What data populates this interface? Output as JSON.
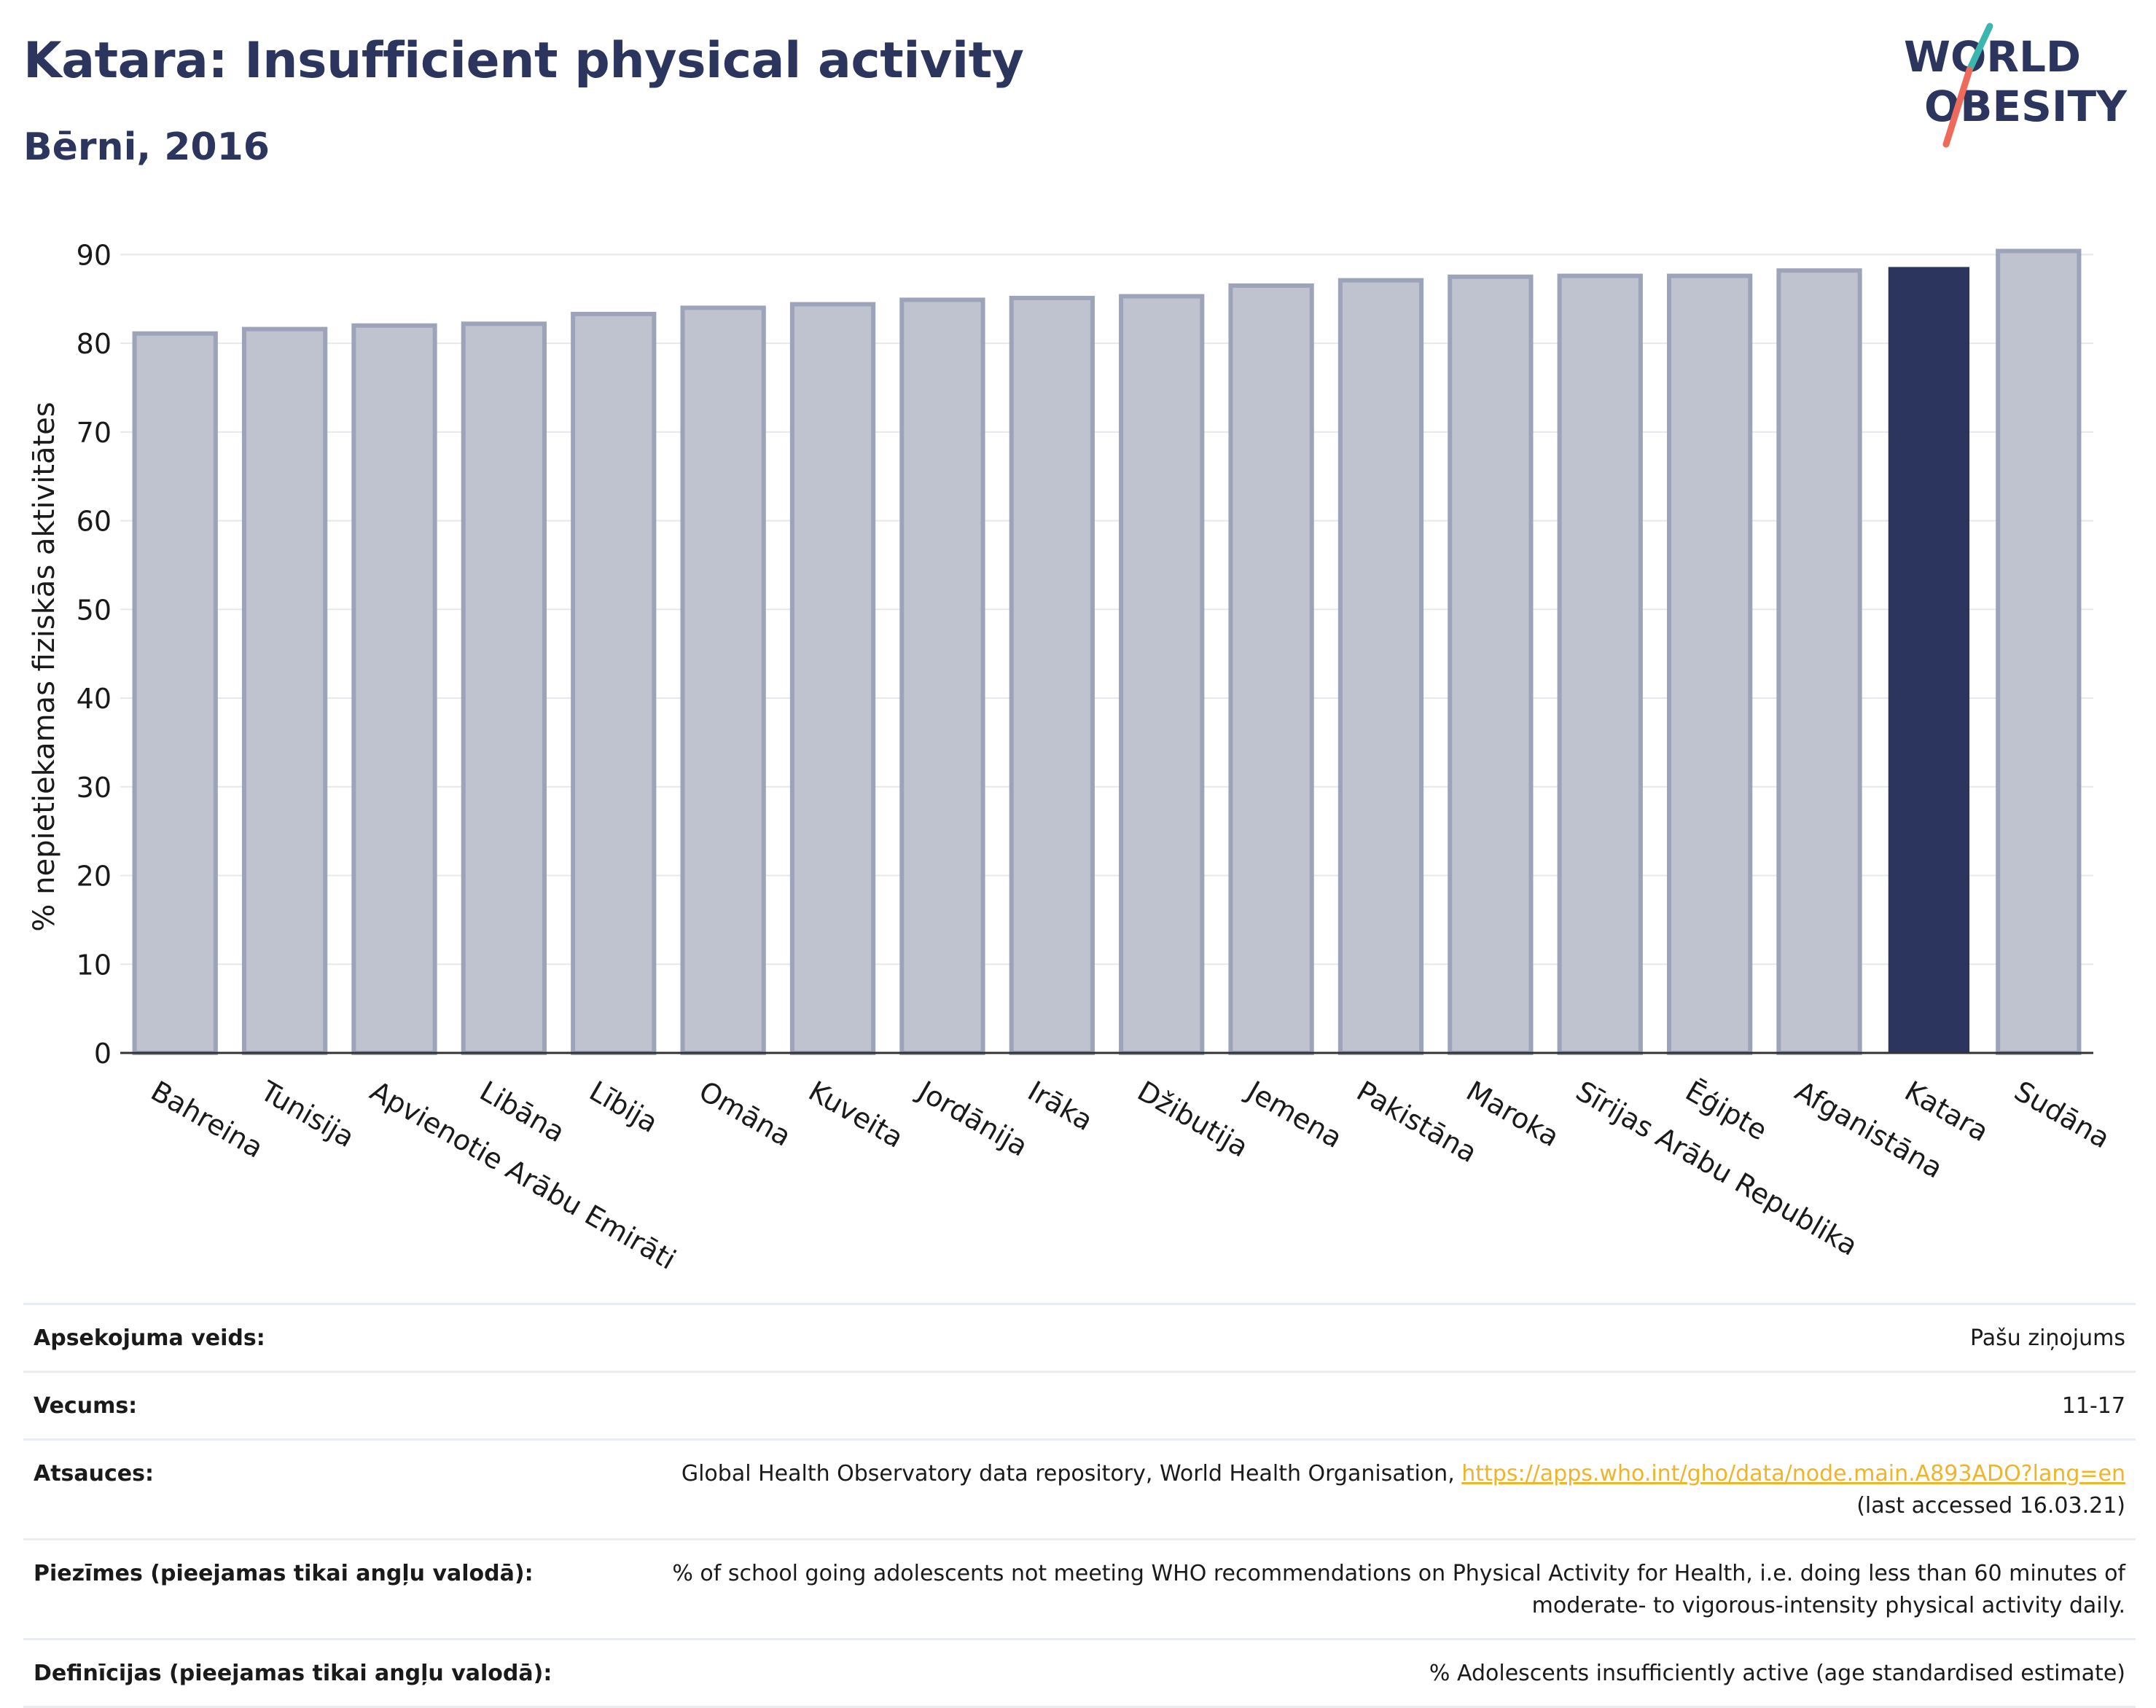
{
  "header": {
    "title": "Katara: Insufficient physical activity",
    "subtitle": "Bērni, 2016"
  },
  "logo": {
    "line1": "WORLD",
    "line2": "OBESITY",
    "colors": {
      "text": "#2b355e",
      "slash_teal": "#3bb5b0",
      "slash_coral": "#ee6a5a"
    }
  },
  "colors": {
    "bar": "#bfc3d0",
    "bar_stroke": "#9da3b8",
    "highlight": "#2b355e",
    "grid": "#e6e8ee",
    "text": "#2b355e"
  },
  "chart_data": {
    "type": "bar",
    "title": "Katara: Insufficient physical activity",
    "subtitle": "Bērni, 2016",
    "ylabel": "% nepietiekamas fiziskās aktivitātes",
    "xlabel": "",
    "ylim": [
      0,
      92
    ],
    "yticks": [
      0,
      10,
      20,
      30,
      40,
      50,
      60,
      70,
      80,
      90
    ],
    "grid": true,
    "highlight": "Katara",
    "categories": [
      "Bahreina",
      "Tunisija",
      "Apvienotie Arābu Emirāti",
      "Libāna",
      "Lībija",
      "Omāna",
      "Kuveita",
      "Jordānija",
      "Irāka",
      "Džibutija",
      "Jemena",
      "Pakistāna",
      "Maroka",
      "Sīrijas Arābu Republika",
      "Ēģipte",
      "Afganistāna",
      "Katara",
      "Sudāna"
    ],
    "values": [
      81.1,
      81.6,
      82.0,
      82.2,
      83.3,
      84.0,
      84.4,
      84.9,
      85.1,
      85.3,
      86.5,
      87.1,
      87.5,
      87.6,
      87.6,
      88.2,
      88.6,
      90.4
    ]
  },
  "info": {
    "rows": [
      {
        "label": "Apsekojuma veids:",
        "value": "Pašu ziņojums"
      },
      {
        "label": "Vecums:",
        "value": "11-17"
      },
      {
        "label": "Atsauces:",
        "value_prefix": "Global Health Observatory data repository, World Health Organisation, ",
        "link": "https://apps.who.int/gho/data/node.main.A893ADO?lang=en",
        "value_suffix": "(last accessed 16.03.21)"
      },
      {
        "label": "Piezīmes (pieejamas tikai angļu valodā):",
        "value": "% of school going adolescents not meeting WHO recommendations on Physical Activity for Health, i.e. doing less than 60 minutes of moderate- to vigorous-intensity physical activity daily."
      },
      {
        "label": "Definīcijas (pieejamas tikai angļu valodā):",
        "value": "% Adolescents insufficiently active (age standardised estimate)"
      }
    ]
  }
}
